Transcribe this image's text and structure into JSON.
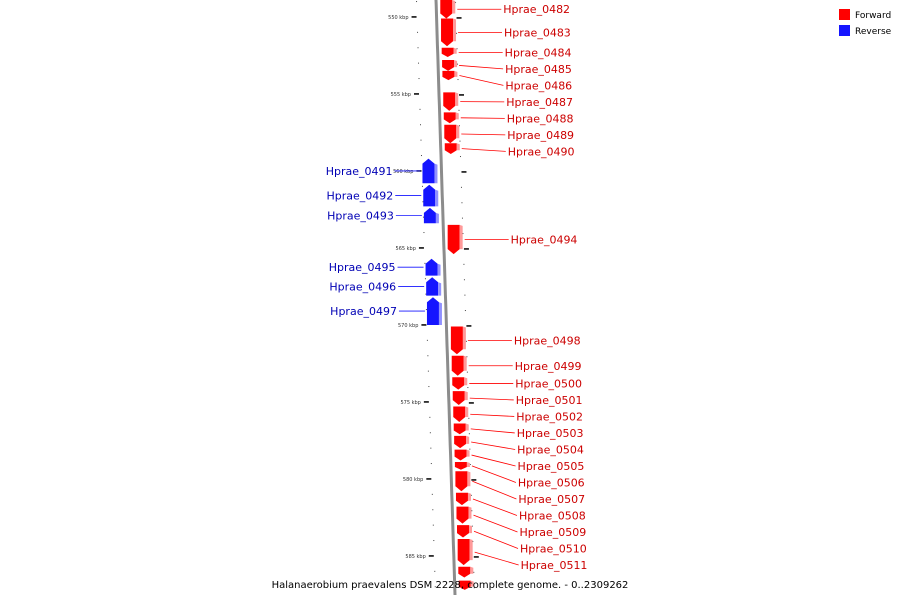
{
  "colors": {
    "forward": "#ff0000",
    "forward_side": "#ff9a9a",
    "forward_label": "#cc0000",
    "reverse": "#1515ff",
    "reverse_side": "#9090ff",
    "reverse_label": "#0000b4",
    "backbone": "#8c8c8c"
  },
  "legend": [
    {
      "key": "forward",
      "label": "Forward"
    },
    {
      "key": "reverse",
      "label": "Reverse"
    }
  ],
  "caption": "Halanaerobium praevalens DSM 2228, complete genome. - 0..2309262",
  "scale": {
    "unit": "kbp",
    "major_ticks": [
      550,
      555,
      560,
      565,
      570,
      575,
      580,
      585
    ],
    "major_labels": [
      "550 kbp",
      "555 kbp",
      "560 kbp",
      "565 kbp",
      "570 kbp",
      "575 kbp",
      "580 kbp",
      "585 kbp"
    ],
    "minor_step_kbp": 1,
    "range_kbp": [
      548.9,
      587.2
    ]
  },
  "genes": [
    {
      "name": "Hprae_0482",
      "strand": "forward",
      "start_kbp": 548.9,
      "end_kbp": 550.1
    },
    {
      "name": "Hprae_0483",
      "strand": "forward",
      "start_kbp": 550.1,
      "end_kbp": 551.9
    },
    {
      "name": "Hprae_0484",
      "strand": "forward",
      "start_kbp": 552.0,
      "end_kbp": 552.6
    },
    {
      "name": "Hprae_0485",
      "strand": "forward",
      "start_kbp": 552.8,
      "end_kbp": 553.5
    },
    {
      "name": "Hprae_0486",
      "strand": "forward",
      "start_kbp": 553.5,
      "end_kbp": 554.1
    },
    {
      "name": "Hprae_0487",
      "strand": "forward",
      "start_kbp": 554.9,
      "end_kbp": 556.1
    },
    {
      "name": "Hprae_0488",
      "strand": "forward",
      "start_kbp": 556.2,
      "end_kbp": 556.9
    },
    {
      "name": "Hprae_0489",
      "strand": "forward",
      "start_kbp": 557.0,
      "end_kbp": 558.2
    },
    {
      "name": "Hprae_0490",
      "strand": "forward",
      "start_kbp": 558.2,
      "end_kbp": 558.9
    },
    {
      "name": "Hprae_0491",
      "strand": "reverse",
      "start_kbp": 559.2,
      "end_kbp": 560.8
    },
    {
      "name": "Hprae_0492",
      "strand": "reverse",
      "start_kbp": 560.9,
      "end_kbp": 562.3
    },
    {
      "name": "Hprae_0493",
      "strand": "reverse",
      "start_kbp": 562.4,
      "end_kbp": 563.4
    },
    {
      "name": "Hprae_0494",
      "strand": "forward",
      "start_kbp": 563.5,
      "end_kbp": 565.4
    },
    {
      "name": "Hprae_0495",
      "strand": "reverse",
      "start_kbp": 565.7,
      "end_kbp": 566.8
    },
    {
      "name": "Hprae_0496",
      "strand": "reverse",
      "start_kbp": 566.9,
      "end_kbp": 568.1
    },
    {
      "name": "Hprae_0497",
      "strand": "reverse",
      "start_kbp": 568.2,
      "end_kbp": 570.0
    },
    {
      "name": "Hprae_0498",
      "strand": "forward",
      "start_kbp": 570.1,
      "end_kbp": 571.9
    },
    {
      "name": "Hprae_0499",
      "strand": "forward",
      "start_kbp": 572.0,
      "end_kbp": 573.3
    },
    {
      "name": "Hprae_0500",
      "strand": "forward",
      "start_kbp": 573.4,
      "end_kbp": 574.2
    },
    {
      "name": "Hprae_0501",
      "strand": "forward",
      "start_kbp": 574.3,
      "end_kbp": 575.2
    },
    {
      "name": "Hprae_0502",
      "strand": "forward",
      "start_kbp": 575.3,
      "end_kbp": 576.3
    },
    {
      "name": "Hprae_0503",
      "strand": "forward",
      "start_kbp": 576.4,
      "end_kbp": 577.1
    },
    {
      "name": "Hprae_0504",
      "strand": "forward",
      "start_kbp": 577.2,
      "end_kbp": 578.0
    },
    {
      "name": "Hprae_0505",
      "strand": "forward",
      "start_kbp": 578.1,
      "end_kbp": 578.8
    },
    {
      "name": "Hprae_0506",
      "strand": "forward",
      "start_kbp": 578.9,
      "end_kbp": 579.4
    },
    {
      "name": "Hprae_0507",
      "strand": "forward",
      "start_kbp": 579.5,
      "end_kbp": 580.8
    },
    {
      "name": "Hprae_0508",
      "strand": "forward",
      "start_kbp": 580.9,
      "end_kbp": 581.7
    },
    {
      "name": "Hprae_0509",
      "strand": "forward",
      "start_kbp": 581.8,
      "end_kbp": 582.9
    },
    {
      "name": "Hprae_0510",
      "strand": "forward",
      "start_kbp": 583.0,
      "end_kbp": 583.8
    },
    {
      "name": "Hprae_0511",
      "strand": "forward",
      "start_kbp": 583.9,
      "end_kbp": 585.6
    },
    {
      "name": "",
      "strand": "forward",
      "start_kbp": 585.7,
      "end_kbp": 586.4
    },
    {
      "name": "",
      "strand": "forward",
      "start_kbp": 586.6,
      "end_kbp": 587.2
    }
  ]
}
